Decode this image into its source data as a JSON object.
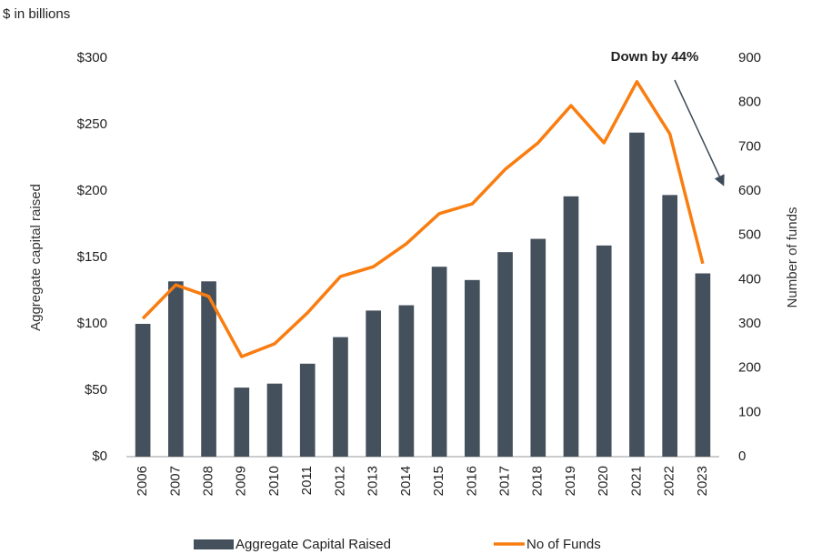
{
  "chart_data": {
    "type": "bar_line",
    "subtitle": "$ in billions",
    "ylabel": "Aggregate capital raised",
    "y2label": "Number of funds",
    "annotation": "Down by 44%",
    "categories": [
      "2006",
      "2007",
      "2008",
      "2009",
      "2010",
      "2011",
      "2012",
      "2013",
      "2014",
      "2015",
      "2016",
      "2017",
      "2018",
      "2019",
      "2020",
      "2021",
      "2022",
      "2023"
    ],
    "series": [
      {
        "name": "Aggregate Capital Raised",
        "type": "bar",
        "color": "#44505c",
        "values": [
          100,
          132,
          132,
          52,
          55,
          70,
          90,
          110,
          114,
          143,
          133,
          154,
          164,
          196,
          159,
          244,
          197,
          138
        ]
      },
      {
        "name": "No of Funds",
        "type": "line",
        "axis": "y2",
        "color": "#f97d10",
        "values": [
          312,
          388,
          362,
          226,
          255,
          325,
          407,
          429,
          481,
          549,
          571,
          649,
          709,
          793,
          709,
          847,
          729,
          436
        ]
      }
    ],
    "ylim": [
      0,
      300
    ],
    "yticks": [
      {
        "value": 0,
        "label": "$0"
      },
      {
        "value": 50,
        "label": "$50"
      },
      {
        "value": 100,
        "label": "$100"
      },
      {
        "value": 150,
        "label": "$150"
      },
      {
        "value": 200,
        "label": "$200"
      },
      {
        "value": 250,
        "label": "$250"
      },
      {
        "value": 300,
        "label": "$300"
      }
    ],
    "y2lim": [
      0,
      900
    ],
    "y2ticks": [
      0,
      100,
      200,
      300,
      400,
      500,
      600,
      700,
      800,
      900
    ]
  }
}
